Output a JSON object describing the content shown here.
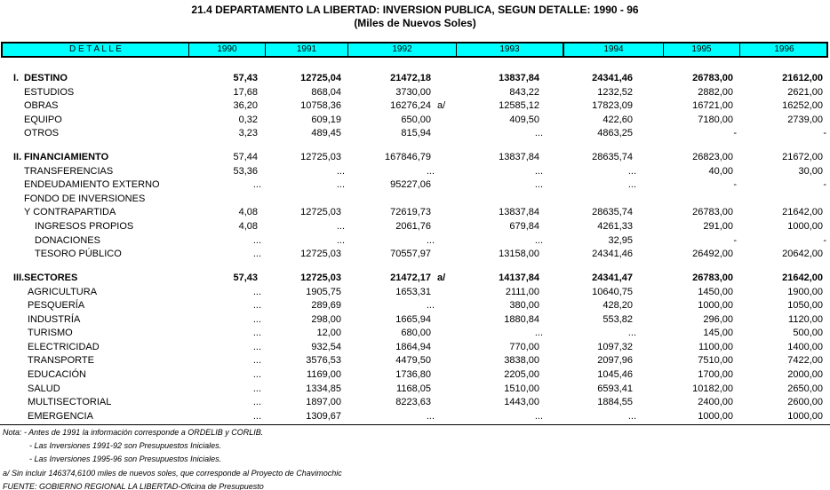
{
  "title": "21.4 DEPARTAMENTO LA LIBERTAD: INVERSION PUBLICA, SEGUN DETALLE: 1990 - 96",
  "subtitle": "(Miles de Nuevos Soles)",
  "columns": [
    "D E T A L L E",
    "1990",
    "1991",
    "1992",
    "1993",
    "1994",
    "1995",
    "1996"
  ],
  "rows": [
    {
      "label": "I.",
      "label2": "DESTINO",
      "bold": true,
      "indent": 0,
      "values": [
        "57,43",
        "12725,04",
        "21472,18",
        "13837,84",
        "24341,46",
        "26783,00",
        "21612,00"
      ]
    },
    {
      "label": "ESTUDIOS",
      "indent": 1,
      "values": [
        "17,68",
        "868,04",
        "3730,00",
        "843,22",
        "1232,52",
        "2882,00",
        "2621,00"
      ]
    },
    {
      "label": "OBRAS",
      "indent": 1,
      "values": [
        "36,20",
        "10758,36",
        "16276,24",
        "12585,12",
        "17823,09",
        "16721,00",
        "16252,00"
      ],
      "mark": "a/"
    },
    {
      "label": "EQUIPO",
      "indent": 1,
      "values": [
        "0,32",
        "609,19",
        "650,00",
        "409,50",
        "422,60",
        "7180,00",
        "2739,00"
      ]
    },
    {
      "label": "OTROS",
      "indent": 1,
      "values": [
        "3,23",
        "489,45",
        "815,94",
        "...",
        "4863,25",
        "-",
        "-"
      ]
    },
    {
      "gap": true
    },
    {
      "label": "II.",
      "label2": "FINANCIAMIENTO",
      "bold": true,
      "boldLabelOnly": true,
      "indent": 0,
      "values": [
        "57,44",
        "12725,03",
        "167846,79",
        "13837,84",
        "28635,74",
        "26823,00",
        "21672,00"
      ]
    },
    {
      "label": "TRANSFERENCIAS",
      "indent": 1,
      "values": [
        "53,36",
        "...",
        "...",
        "...",
        "...",
        "40,00",
        "30,00"
      ]
    },
    {
      "label": "ENDEUDAMIENTO EXTERNO",
      "indent": 1,
      "values": [
        "...",
        "...",
        "95227,06",
        "...",
        "...",
        "-",
        "-"
      ]
    },
    {
      "label": "FONDO DE INVERSIONES",
      "indent": 1,
      "values": [
        "",
        "",
        "",
        "",
        "",
        "",
        ""
      ]
    },
    {
      "label": "Y CONTRAPARTIDA",
      "indent": 1,
      "values": [
        "4,08",
        "12725,03",
        "72619,73",
        "13837,84",
        "28635,74",
        "26783,00",
        "21642,00"
      ]
    },
    {
      "label": "INGRESOS PROPIOS",
      "indent": 2,
      "values": [
        "4,08",
        "...",
        "2061,76",
        "679,84",
        "4261,33",
        "291,00",
        "1000,00"
      ]
    },
    {
      "label": "DONACIONES",
      "indent": 2,
      "values": [
        "...",
        "...",
        "...",
        "...",
        "32,95",
        "-",
        "-"
      ]
    },
    {
      "label": "TESORO PÚBLICO",
      "indent": 2,
      "values": [
        "...",
        "12725,03",
        "70557,97",
        "13158,00",
        "24341,46",
        "26492,00",
        "20642,00"
      ]
    },
    {
      "gap": true
    },
    {
      "label": "III.",
      "label2": "SECTORES",
      "bold": true,
      "indent": 0,
      "values": [
        "57,43",
        "12725,03",
        "21472,17",
        "14137,84",
        "24341,47",
        "26783,00",
        "21642,00"
      ],
      "mark": "a/"
    },
    {
      "label": "AGRICULTURA",
      "indent": 3,
      "values": [
        "...",
        "1905,75",
        "1653,31",
        "2111,00",
        "10640,75",
        "1450,00",
        "1900,00"
      ]
    },
    {
      "label": "PESQUERÍA",
      "indent": 3,
      "values": [
        "...",
        "289,69",
        "...",
        "380,00",
        "428,20",
        "1000,00",
        "1050,00"
      ]
    },
    {
      "label": "INDUSTRÍA",
      "indent": 3,
      "values": [
        "...",
        "298,00",
        "1665,94",
        "1880,84",
        "553,82",
        "296,00",
        "1120,00"
      ]
    },
    {
      "label": "TURISMO",
      "indent": 3,
      "values": [
        "...",
        "12,00",
        "680,00",
        "...",
        "...",
        "145,00",
        "500,00"
      ]
    },
    {
      "label": "ELECTRICIDAD",
      "indent": 3,
      "values": [
        "...",
        "932,54",
        "1864,94",
        "770,00",
        "1097,32",
        "1100,00",
        "1400,00"
      ]
    },
    {
      "label": "TRANSPORTE",
      "indent": 3,
      "values": [
        "...",
        "3576,53",
        "4479,50",
        "3838,00",
        "2097,96",
        "7510,00",
        "7422,00"
      ]
    },
    {
      "label": "EDUCACIÓN",
      "indent": 3,
      "values": [
        "...",
        "1169,00",
        "1736,80",
        "2205,00",
        "1045,46",
        "1700,00",
        "2000,00"
      ]
    },
    {
      "label": "SALUD",
      "indent": 3,
      "values": [
        "...",
        "1334,85",
        "1168,05",
        "1510,00",
        "6593,41",
        "10182,00",
        "2650,00"
      ]
    },
    {
      "label": "MULTISECTORIAL",
      "indent": 3,
      "values": [
        "...",
        "1897,00",
        "8223,63",
        "1443,00",
        "1884,55",
        "2400,00",
        "2600,00"
      ]
    },
    {
      "label": "EMERGENCIA",
      "indent": 3,
      "values": [
        "...",
        "1309,67",
        "...",
        "...",
        "...",
        "1000,00",
        "1000,00"
      ]
    }
  ],
  "notes": [
    "Nota:  - Antes de 1991 la información corresponde a ORDELIB y CORLIB.",
    "- Las Inversiones 1991-92 son Presupuestos Iniciales.",
    "- Las Inversiones 1995-96 son Presupuestos Iniciales.",
    "a/ Sin incluir 146374,6100 miles de nuevos soles, que corresponde al Proyecto de Chavimochic",
    "FUENTE:  GOBIERNO REGIONAL LA LIBERTAD-Oficina de Presupuesto"
  ],
  "colors": {
    "header_bg": "#00ffff"
  }
}
